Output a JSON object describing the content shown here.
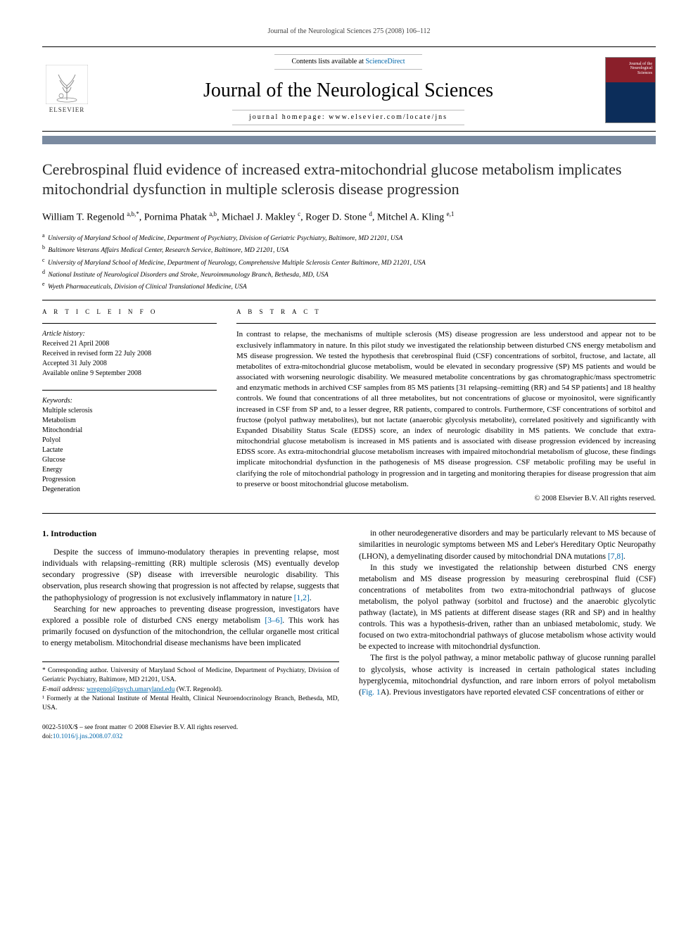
{
  "running_header": "Journal of the Neurological Sciences 275 (2008) 106–112",
  "masthead": {
    "publisher_name": "ELSEVIER",
    "contents_prefix": "Contents lists available at ",
    "contents_link": "ScienceDirect",
    "journal_title": "Journal of the Neurological Sciences",
    "homepage_label": "journal homepage: www.elsevier.com/locate/jns",
    "cover_label_1": "Journal of the",
    "cover_label_2": "Neurological",
    "cover_label_3": "Sciences"
  },
  "accent_bar_color": "#7a8aa0",
  "article_title": "Cerebrospinal fluid evidence of increased extra-mitochondrial glucose metabolism implicates mitochondrial dysfunction in multiple sclerosis disease progression",
  "authors_html": "William T. Regenold <sup>a,b,*</sup>, Pornima Phatak <sup>a,b</sup>, Michael J. Makley <sup>c</sup>, Roger D. Stone <sup>d</sup>, Mitchel A. Kling <sup>e,1</sup>",
  "affiliations": [
    {
      "key": "a",
      "text": "University of Maryland School of Medicine, Department of Psychiatry, Division of Geriatric Psychiatry, Baltimore, MD 21201, USA"
    },
    {
      "key": "b",
      "text": "Baltimore Veterans Affairs Medical Center, Research Service, Baltimore, MD 21201, USA"
    },
    {
      "key": "c",
      "text": "University of Maryland School of Medicine, Department of Neurology, Comprehensive Multiple Sclerosis Center Baltimore, MD 21201, USA"
    },
    {
      "key": "d",
      "text": "National Institute of Neurological Disorders and Stroke, Neuroimmunology Branch, Bethesda, MD, USA"
    },
    {
      "key": "e",
      "text": "Wyeth Pharmaceuticals, Division of Clinical Translational Medicine, USA"
    }
  ],
  "article_info_label": "A R T I C L E   I N F O",
  "abstract_label": "A B S T R A C T",
  "history_label": "Article history:",
  "history": [
    "Received 21 April 2008",
    "Received in revised form 22 July 2008",
    "Accepted 31 July 2008",
    "Available online 9 September 2008"
  ],
  "keywords_label": "Keywords:",
  "keywords": [
    "Multiple sclerosis",
    "Metabolism",
    "Mitochondrial",
    "Polyol",
    "Lactate",
    "Glucose",
    "Energy",
    "Progression",
    "Degeneration"
  ],
  "abstract": "In contrast to relapse, the mechanisms of multiple sclerosis (MS) disease progression are less understood and appear not to be exclusively inflammatory in nature. In this pilot study we investigated the relationship between disturbed CNS energy metabolism and MS disease progression. We tested the hypothesis that cerebrospinal fluid (CSF) concentrations of sorbitol, fructose, and lactate, all metabolites of extra-mitochondrial glucose metabolism, would be elevated in secondary progressive (SP) MS patients and would be associated with worsening neurologic disability. We measured metabolite concentrations by gas chromatographic/mass spectrometric and enzymatic methods in archived CSF samples from 85 MS patients [31 relapsing–remitting (RR) and 54 SP patients] and 18 healthy controls. We found that concentrations of all three metabolites, but not concentrations of glucose or myoinositol, were significantly increased in CSF from SP and, to a lesser degree, RR patients, compared to controls. Furthermore, CSF concentrations of sorbitol and fructose (polyol pathway metabolites), but not lactate (anaerobic glycolysis metabolite), correlated positively and significantly with Expanded Disability Status Scale (EDSS) score, an index of neurologic disability in MS patients. We conclude that extra-mitochondrial glucose metabolism is increased in MS patients and is associated with disease progression evidenced by increasing EDSS score. As extra-mitochondrial glucose metabolism increases with impaired mitochondrial metabolism of glucose, these findings implicate mitochondrial dysfunction in the pathogenesis of MS disease progression. CSF metabolic profiling may be useful in clarifying the role of mitochondrial pathology in progression and in targeting and monitoring therapies for disease progression that aim to preserve or boost mitochondrial glucose metabolism.",
  "copyright": "© 2008 Elsevier B.V. All rights reserved.",
  "intro_heading": "1. Introduction",
  "body_left": [
    "Despite the success of immuno-modulatory therapies in preventing relapse, most individuals with relapsing–remitting (RR) multiple sclerosis (MS) eventually develop secondary progressive (SP) disease with irreversible neurologic disability. This observation, plus research showing that progression is not affected by relapse, suggests that the pathophysiology of progression is not exclusively inflammatory in nature [1,2].",
    "Searching for new approaches to preventing disease progression, investigators have explored a possible role of disturbed CNS energy metabolism [3–6]. This work has primarily focused on dysfunction of the mitochondrion, the cellular organelle most critical to energy metabolism. Mitochondrial disease mechanisms have been implicated"
  ],
  "body_right": [
    "in other neurodegenerative disorders and may be particularly relevant to MS because of similarities in neurologic symptoms between MS and Leber's Hereditary Optic Neuropathy (LHON), a demyelinating disorder caused by mitochondrial DNA mutations [7,8].",
    "In this study we investigated the relationship between disturbed CNS energy metabolism and MS disease progression by measuring cerebrospinal fluid (CSF) concentrations of metabolites from two extra-mitochondrial pathways of glucose metabolism, the polyol pathway (sorbitol and fructose) and the anaerobic glycolytic pathway (lactate), in MS patients at different disease stages (RR and SP) and in healthy controls. This was a hypothesis-driven, rather than an unbiased metabolomic, study. We focused on two extra-mitochondrial pathways of glucose metabolism whose activity would be expected to increase with mitochondrial dysfunction.",
    "The first is the polyol pathway, a minor metabolic pathway of glucose running parallel to glycolysis, whose activity is increased in certain pathological states including hyperglycemia, mitochondrial dysfunction, and rare inborn errors of polyol metabolism (Fig. 1A). Previous investigators have reported elevated CSF concentrations of either or"
  ],
  "ref_links_left": [
    "[1,2]",
    "[3–6]"
  ],
  "ref_links_right": [
    "[7,8]",
    "Fig. 1"
  ],
  "footnotes": {
    "corr": "* Corresponding author. University of Maryland School of Medicine, Department of Psychiatry, Division of Geriatric Psychiatry, Baltimore, MD 21201, USA.",
    "email_label": "E-mail address:",
    "email": "wregenol@psych.umaryland.edu",
    "email_owner": "(W.T. Regenold).",
    "note1": "¹ Formerly at the National Institute of Mental Health, Clinical Neuroendocrinology Branch, Bethesda, MD, USA."
  },
  "bottom": {
    "issn_line": "0022-510X/$ – see front matter © 2008 Elsevier B.V. All rights reserved.",
    "doi_label": "doi:",
    "doi": "10.1016/j.jns.2008.07.032"
  },
  "colors": {
    "link": "#0066aa",
    "accent": "#7a8aa0",
    "text": "#000000",
    "grey": "#555555"
  },
  "typography": {
    "title_fontsize_pt": 22,
    "journal_fontsize_pt": 28,
    "body_fontsize_pt": 11.5,
    "abstract_fontsize_pt": 11,
    "small_fontsize_pt": 10
  }
}
